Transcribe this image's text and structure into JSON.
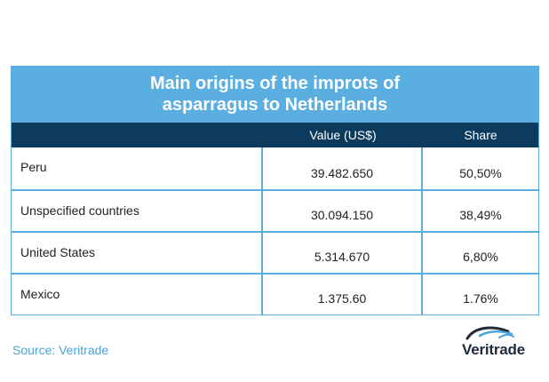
{
  "chart_data": {
    "type": "table",
    "title_line1": "Main origins of the improts of",
    "title_line2": "asparragus to Netherlands",
    "columns": [
      "",
      "Value (US$)",
      "Share"
    ],
    "rows": [
      {
        "country": "Peru",
        "value": "39.482.650",
        "share": "50,50%"
      },
      {
        "country": "Unspecified countries",
        "value": "30.094.150",
        "share": "38,49%"
      },
      {
        "country": "United States",
        "value": "5.314.670",
        "share": "6,80%"
      },
      {
        "country": "Mexico",
        "value": "1.375.60",
        "share": "1.76%"
      }
    ]
  },
  "source": "Source: Veritrade",
  "logo": {
    "text": "Veritrade"
  },
  "colors": {
    "title_band": "#5aaee0",
    "header_band": "#0d3b5e",
    "border": "#5aaee0",
    "source_text": "#4aa3da"
  }
}
